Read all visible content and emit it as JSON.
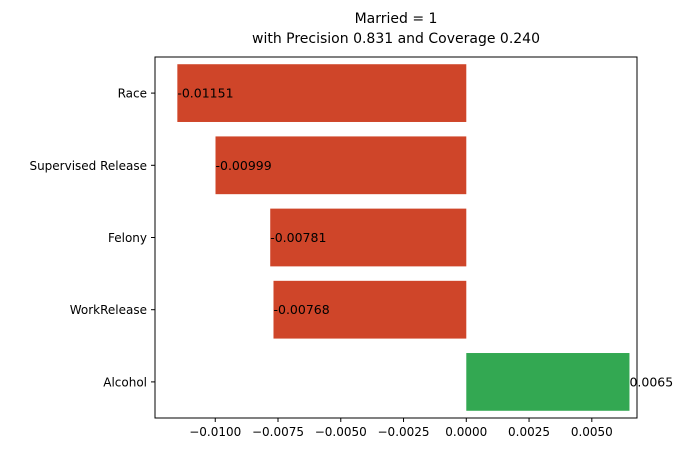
{
  "chart_data": {
    "type": "bar",
    "orientation": "horizontal",
    "title_lines": [
      "Married = 1",
      "with Precision 0.831 and Coverage 0.240"
    ],
    "xlabel": "",
    "ylabel": "",
    "categories": [
      "Race",
      "Supervised Release",
      "Felony",
      "WorkRelease",
      "Alcohol"
    ],
    "values": [
      -0.01151,
      -0.00999,
      -0.00781,
      -0.00768,
      0.0065
    ],
    "data_labels": [
      "-0.01151",
      "-0.00999",
      "-0.00781",
      "-0.00768",
      "0.0065"
    ],
    "xlim": [
      -0.0124,
      0.0068
    ],
    "xticks": [
      -0.01,
      -0.0075,
      -0.005,
      -0.0025,
      0.0,
      0.0025,
      0.005
    ],
    "xtick_labels": [
      "−0.0100",
      "−0.0075",
      "−0.0050",
      "−0.0025",
      "0.0000",
      "0.0025",
      "0.0050"
    ],
    "grid": false,
    "colors": {
      "negative": "#cf4529",
      "positive": "#33a852",
      "axis": "#000000"
    }
  }
}
